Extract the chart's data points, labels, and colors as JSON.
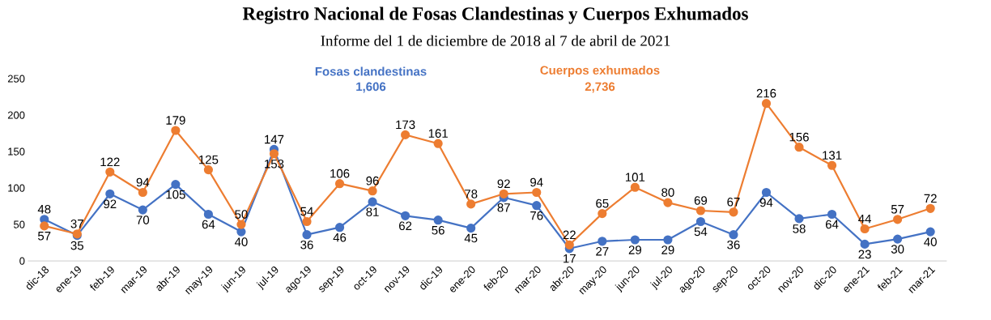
{
  "chart_data": {
    "type": "line",
    "title": "Registro Nacional de Fosas Clandestinas y Cuerpos Exhumados",
    "subtitle": "Informe del 1 de diciembre de 2018 al 7 de abril de 2021",
    "categories": [
      "dic-18",
      "ene-19",
      "feb-19",
      "mar-19",
      "abr-19",
      "may-19",
      "jun-19",
      "jul-19",
      "ago-19",
      "sep-19",
      "oct-19",
      "nov-19",
      "dic-19",
      "ene-20",
      "feb-20",
      "mar-20",
      "abr-20",
      "may-20",
      "jun-20",
      "jul-20",
      "ago-20",
      "sep-20",
      "oct-20",
      "nov-20",
      "dic-20",
      "ene-21",
      "feb-21",
      "mar-21"
    ],
    "series": [
      {
        "name": "Fosas clandestinas",
        "color": "#4472c4",
        "values": [
          57,
          35,
          92,
          70,
          105,
          64,
          40,
          153,
          36,
          46,
          81,
          62,
          56,
          45,
          87,
          76,
          17,
          27,
          29,
          29,
          54,
          36,
          94,
          58,
          64,
          23,
          30,
          40
        ]
      },
      {
        "name": "Cuerpos exhumados",
        "color": "#ed7d31",
        "values": [
          48,
          37,
          122,
          94,
          179,
          125,
          50,
          147,
          54,
          106,
          96,
          173,
          161,
          78,
          92,
          94,
          22,
          65,
          101,
          80,
          69,
          67,
          216,
          156,
          131,
          44,
          57,
          72
        ]
      }
    ],
    "annotations": [
      "1,606",
      "2,736"
    ],
    "ylim": [
      0,
      250
    ],
    "yticks": [
      0,
      50,
      100,
      150,
      200,
      250
    ],
    "grid": false,
    "legend": "top",
    "marker": "circle",
    "line_style": "solid",
    "data_labels": true
  }
}
